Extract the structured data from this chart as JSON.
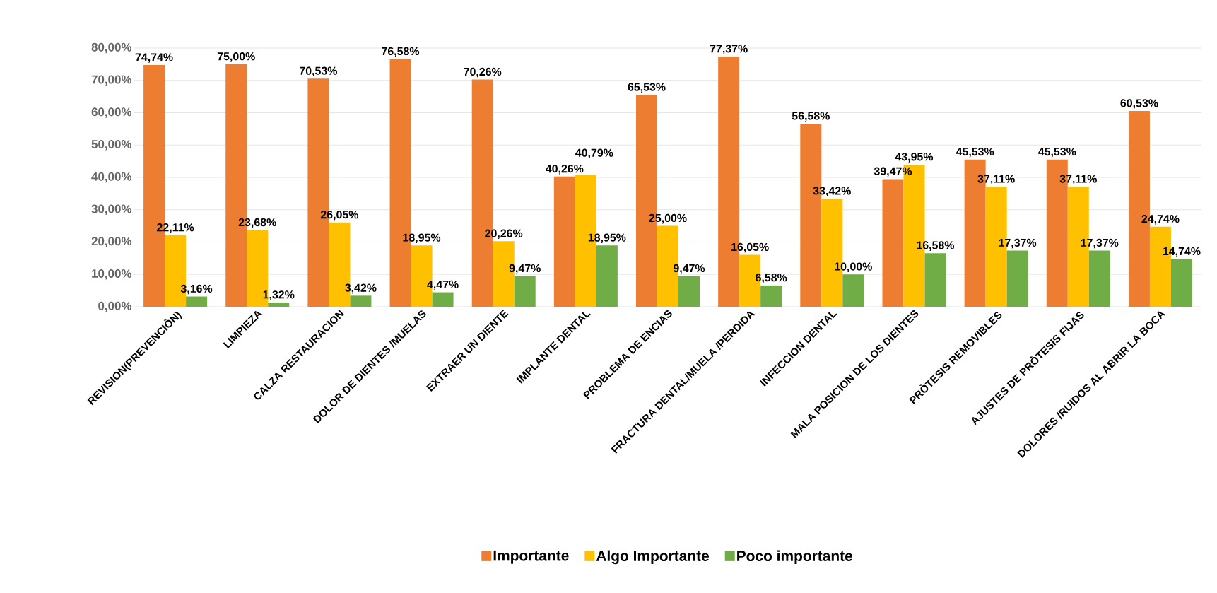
{
  "chart_data": {
    "type": "bar",
    "categories": [
      "REVISION(PREVENCIÒN)",
      "LIMPIEZA",
      "CALZA RESTAURACION",
      "DOLOR DE DIENTES /MUELAS",
      "EXTRAER UN DIENTE",
      "IMPLANTE DENTAL",
      "PROBLEMA DE ENCIAS",
      "FRACTURA DENTAL/MUELA /PERDIDA",
      "INFECCION DENTAL",
      "MALA POSICION DE LOS DIENTES",
      "PRÒTESIS REMOVIBLES",
      "AJUSTES DE PRÒTESIS FIJAS",
      "DOLORES /RUIDOS AL ABRIR LA BOCA"
    ],
    "series": [
      {
        "name": "Importante",
        "color": "#ed7d31",
        "values": [
          74.74,
          75.0,
          70.53,
          76.58,
          70.26,
          40.26,
          65.53,
          77.37,
          56.58,
          39.47,
          45.53,
          45.53,
          60.53
        ],
        "value_labels": [
          "74,74%",
          "75,00%",
          "70,53%",
          "76,58%",
          "70,26%",
          "40,26%",
          "65,53%",
          "77,37%",
          "56,58%",
          "39,47%",
          "45,53%",
          "45,53%",
          "60,53%"
        ]
      },
      {
        "name": "Algo Importante",
        "color": "#ffc000",
        "values": [
          22.11,
          23.68,
          26.05,
          18.95,
          20.26,
          40.79,
          25.0,
          16.05,
          33.42,
          43.95,
          37.11,
          37.11,
          24.74
        ],
        "value_labels": [
          "22,11%",
          "23,68%",
          "26,05%",
          "18,95%",
          "20,26%",
          "40,79%",
          "25,00%",
          "16,05%",
          "33,42%",
          "43,95%",
          "37,11%",
          "37,11%",
          "24,74%"
        ]
      },
      {
        "name": "Poco importante",
        "color": "#70ad47",
        "values": [
          3.16,
          1.32,
          3.42,
          4.47,
          9.47,
          18.95,
          9.47,
          6.58,
          10.0,
          16.58,
          17.37,
          17.37,
          14.74
        ],
        "value_labels": [
          "3,16%",
          "1,32%",
          "3,42%",
          "4,47%",
          "9,47%",
          "18,95%",
          "9,47%",
          "6,58%",
          "10,00%",
          "16,58%",
          "17,37%",
          "17,37%",
          "14,74%"
        ]
      }
    ],
    "ylim": [
      0,
      80
    ],
    "yticks": [
      {
        "value": 0,
        "label": "0,00%"
      },
      {
        "value": 10,
        "label": "10,00%"
      },
      {
        "value": 20,
        "label": "20,00%"
      },
      {
        "value": 30,
        "label": "30,00%"
      },
      {
        "value": 40,
        "label": "40,00%"
      },
      {
        "value": 50,
        "label": "50,00%"
      },
      {
        "value": 60,
        "label": "60,00%"
      },
      {
        "value": 70,
        "label": "70,00%"
      },
      {
        "value": 80,
        "label": "80,00%"
      }
    ],
    "grid": "y",
    "legend": "bottom"
  }
}
